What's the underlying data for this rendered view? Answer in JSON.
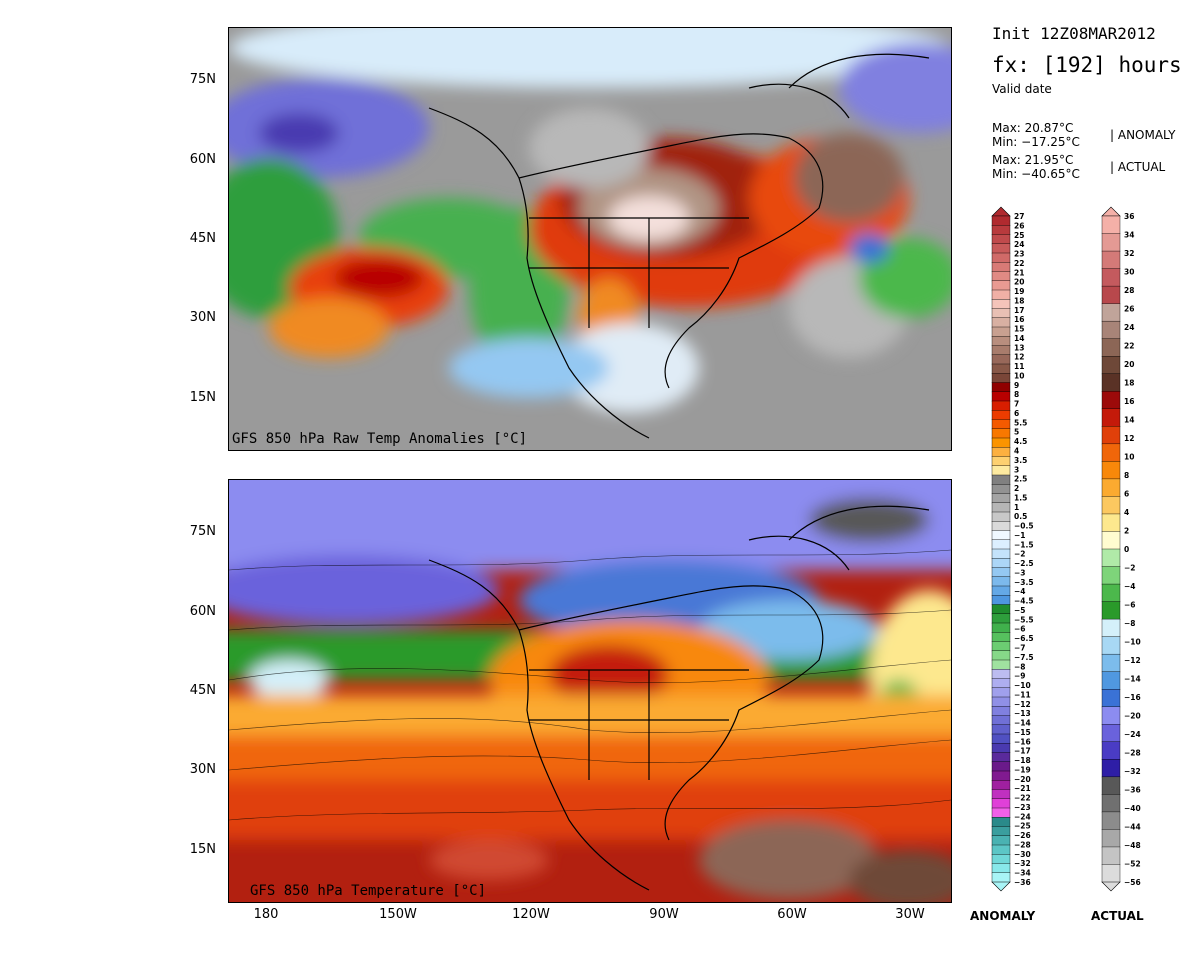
{
  "header": {
    "init": "Init 12Z08MAR2012",
    "fx_prefix": "fx: [",
    "fx_hours": "192",
    "fx_suffix": "] hours",
    "valid": "Valid date"
  },
  "stats": {
    "anomaly_max": "Max: 20.87°C",
    "anomaly_min": "Min: −17.25°C",
    "anomaly_tag": "| ANOMALY",
    "actual_max": "Max: 21.95°C",
    "actual_min": "Min: −40.65°C",
    "actual_tag": "| ACTUAL"
  },
  "panels": {
    "top_caption": "GFS 850 hPa Raw Temp Anomalies [°C]",
    "bottom_caption": "GFS 850 hPa Temperature [°C]"
  },
  "axes": {
    "lat_labels": [
      "75N",
      "60N",
      "45N",
      "30N",
      "15N"
    ],
    "lon_labels": [
      "180",
      "150W",
      "120W",
      "90W",
      "60W",
      "30W"
    ]
  },
  "colorbars": {
    "anomaly_label": "ANOMALY",
    "actual_label": "ACTUAL",
    "anomaly_ticks": [
      "27",
      "26",
      "25",
      "24",
      "23",
      "22",
      "21",
      "20",
      "19",
      "18",
      "17",
      "16",
      "15",
      "14",
      "13",
      "12",
      "11",
      "10",
      "9",
      "8",
      "7",
      "6",
      "5.5",
      "5",
      "4.5",
      "4",
      "3.5",
      "3",
      "2.5",
      "2",
      "1.5",
      "1",
      "0.5",
      "−0.5",
      "−1",
      "−1.5",
      "−2",
      "−2.5",
      "−3",
      "−3.5",
      "−4",
      "−4.5",
      "−5",
      "−5.5",
      "−6",
      "−6.5",
      "−7",
      "−7.5",
      "−8",
      "−9",
      "−10",
      "−11",
      "−12",
      "−13",
      "−14",
      "−15",
      "−16",
      "−17",
      "−18",
      "−19",
      "−20",
      "−21",
      "−22",
      "−23",
      "−24",
      "−25",
      "−26",
      "−28",
      "−30",
      "−32",
      "−34",
      "−36"
    ],
    "actual_ticks": [
      "36",
      "34",
      "32",
      "30",
      "28",
      "26",
      "24",
      "22",
      "20",
      "18",
      "16",
      "14",
      "12",
      "10",
      "8",
      "6",
      "4",
      "2",
      "0",
      "−2",
      "−4",
      "−6",
      "−8",
      "−10",
      "−12",
      "−14",
      "−16",
      "−20",
      "−24",
      "−28",
      "−32",
      "−36",
      "−40",
      "−44",
      "−48",
      "−52",
      "−56"
    ],
    "anomaly_colors": [
      "#b02a2f",
      "#b83a3d",
      "#c04a4c",
      "#c85a5a",
      "#d06a68",
      "#d87a76",
      "#e08a84",
      "#e89a92",
      "#f0b0a6",
      "#f4c4ba",
      "#e8c0b4",
      "#d8b0a2",
      "#c8a090",
      "#b88e7e",
      "#a87c6c",
      "#98685a",
      "#885848",
      "#7a4638",
      "#900000",
      "#b80000",
      "#d81e00",
      "#ec3c00",
      "#f45a00",
      "#f87800",
      "#fb9400",
      "#fcb040",
      "#fdd070",
      "#fdeaa0",
      "#808080",
      "#929292",
      "#a4a4a4",
      "#b6b6b6",
      "#c8c8c8",
      "#dadada",
      "#f0f8ff",
      "#dcefff",
      "#c4e3fb",
      "#acd6f7",
      "#94c8f2",
      "#7cb9ec",
      "#64a8e6",
      "#4e96df",
      "#1f8c2e",
      "#2e9e3c",
      "#40b04c",
      "#56c05e",
      "#6ccd72",
      "#86d888",
      "#a0e2a0",
      "#bcbcf0",
      "#aeaef0",
      "#a0a0ec",
      "#9090e6",
      "#8080df",
      "#7070d6",
      "#6060cc",
      "#5050c2",
      "#4a3ab0",
      "#5a2a9c",
      "#6a1a8a",
      "#801a90",
      "#a020a0",
      "#c030c0",
      "#e040d8",
      "#f060e8",
      "#2a8a8a",
      "#3a9e9e",
      "#4ab2b2",
      "#5cc6c6",
      "#70d8d8",
      "#88e8ea",
      "#a8f4f6"
    ],
    "actual_colors": [
      "#f4b0a8",
      "#e49a94",
      "#d47a78",
      "#c45a5e",
      "#b8484c",
      "#c0a49a",
      "#a88478",
      "#8c6656",
      "#6e4838",
      "#5a3226",
      "#9c0a0a",
      "#c41a0a",
      "#e0400a",
      "#f0660a",
      "#f8880a",
      "#fbaa30",
      "#fcc860",
      "#fde88e",
      "#fffcd0",
      "#b0eaa8",
      "#7ed47a",
      "#4cb84c",
      "#2a9a2a",
      "#d4f0fa",
      "#a8d8f4",
      "#7cbcec",
      "#5098e0",
      "#3a72d6",
      "#8c8cf0",
      "#6a62dc",
      "#4a3cc4",
      "#2e1ea6",
      "#585858",
      "#707070",
      "#8c8c8c",
      "#a8a8a8",
      "#c4c4c4",
      "#dcdcdc"
    ]
  }
}
